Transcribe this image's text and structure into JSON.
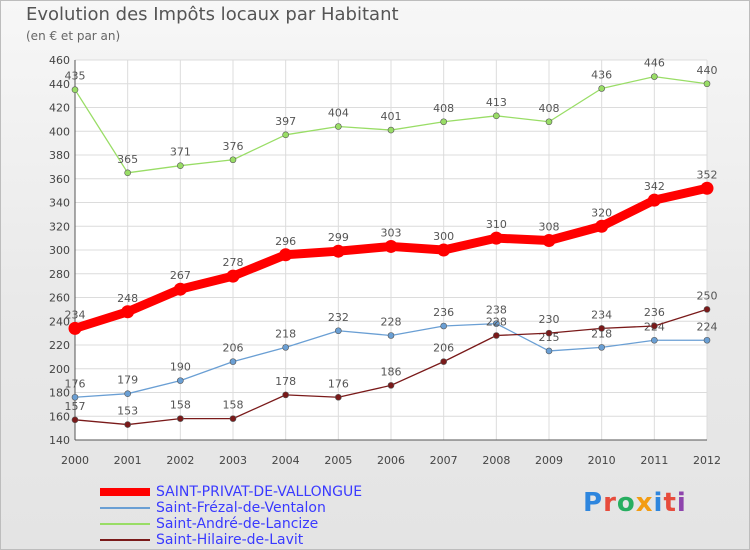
{
  "title": "Evolution des Impôts locaux par Habitant",
  "subtitle": "(en € et par an)",
  "chart_data": {
    "type": "line",
    "x": [
      "2000",
      "2001",
      "2002",
      "2003",
      "2004",
      "2005",
      "2006",
      "2007",
      "2008",
      "2009",
      "2010",
      "2011",
      "2012"
    ],
    "ylim": [
      140,
      460
    ],
    "yticks": [
      "140",
      "160",
      "180",
      "200",
      "220",
      "240",
      "260",
      "280",
      "300",
      "320",
      "340",
      "360",
      "380",
      "400",
      "420",
      "440",
      "460"
    ],
    "grid": true,
    "series": [
      {
        "name": "SAINT-PRIVAT-DE-VALLONGUE",
        "color": "#ff0000",
        "values": [
          234,
          248,
          267,
          278,
          296,
          299,
          303,
          300,
          310,
          308,
          320,
          342,
          352
        ]
      },
      {
        "name": "Saint-Frézal-de-Ventalon",
        "color": "#6a9fd4",
        "values": [
          176,
          179,
          190,
          206,
          218,
          232,
          228,
          236,
          238,
          215,
          218,
          224,
          224
        ]
      },
      {
        "name": "Saint-André-de-Lancize",
        "color": "#99dd66",
        "values": [
          435,
          365,
          371,
          376,
          397,
          404,
          401,
          408,
          413,
          408,
          436,
          446,
          440
        ]
      },
      {
        "name": "Saint-Hilaire-de-Lavit",
        "color": "#7a1a1a",
        "values": [
          157,
          153,
          158,
          158,
          178,
          176,
          186,
          206,
          228,
          230,
          234,
          236,
          250
        ]
      }
    ]
  },
  "legend": [
    {
      "label": "SAINT-PRIVAT-DE-VALLONGUE",
      "color": "#ff0000"
    },
    {
      "label": "Saint-Frézal-de-Ventalon",
      "color": "#6a9fd4"
    },
    {
      "label": "Saint-André-de-Lancize",
      "color": "#99dd66"
    },
    {
      "label": "Saint-Hilaire-de-Lavit",
      "color": "#7a1a1a"
    }
  ],
  "legend_text_color": "#3a3aff",
  "logo": {
    "letters": [
      "P",
      "r",
      "o",
      "x",
      "i",
      "t",
      "i"
    ],
    "colors": [
      "#2e86de",
      "#e74c3c",
      "#27ae60",
      "#f39c12",
      "#2e86de",
      "#e74c3c",
      "#8e44ad"
    ]
  }
}
